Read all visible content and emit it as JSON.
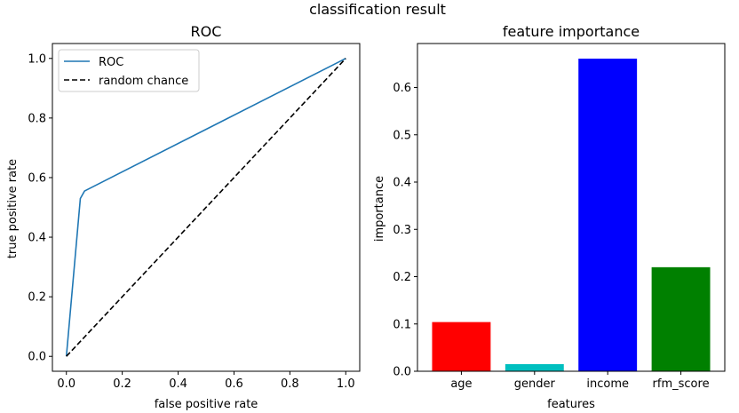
{
  "figure": {
    "suptitle": "classification result"
  },
  "chart_data": [
    {
      "type": "line",
      "title": "ROC",
      "xlabel": "false positive rate",
      "ylabel": "true positive rate",
      "xlim": [
        -0.05,
        1.05
      ],
      "ylim": [
        -0.05,
        1.05
      ],
      "xticks": [
        0.0,
        0.2,
        0.4,
        0.6,
        0.8,
        1.0
      ],
      "xtick_labels": [
        "0.0",
        "0.2",
        "0.4",
        "0.6",
        "0.8",
        "1.0"
      ],
      "yticks": [
        0.0,
        0.2,
        0.4,
        0.6,
        0.8,
        1.0
      ],
      "ytick_labels": [
        "0.0",
        "0.2",
        "0.4",
        "0.6",
        "0.8",
        "1.0"
      ],
      "grid": false,
      "legend_position": "top-left",
      "series": [
        {
          "name": "ROC",
          "color": "#1f77b4",
          "style": "solid",
          "x": [
            0.0,
            0.05,
            0.065,
            1.0
          ],
          "y": [
            0.0,
            0.53,
            0.555,
            1.0
          ]
        },
        {
          "name": "random chance",
          "color": "#000000",
          "style": "dashed",
          "x": [
            0.0,
            1.0
          ],
          "y": [
            0.0,
            1.0
          ]
        }
      ]
    },
    {
      "type": "bar",
      "title": "feature importance",
      "xlabel": "features",
      "ylabel": "importance",
      "ylim": [
        0,
        0.693
      ],
      "yticks": [
        0.0,
        0.1,
        0.2,
        0.3,
        0.4,
        0.5,
        0.6
      ],
      "ytick_labels": [
        "0.0",
        "0.1",
        "0.2",
        "0.3",
        "0.4",
        "0.5",
        "0.6"
      ],
      "grid": false,
      "categories": [
        "age",
        "gender",
        "income",
        "rfm_score"
      ],
      "values": [
        0.104,
        0.015,
        0.661,
        0.22
      ],
      "colors": [
        "#ff0000",
        "#00bfbf",
        "#0000ff",
        "#008000"
      ]
    }
  ]
}
